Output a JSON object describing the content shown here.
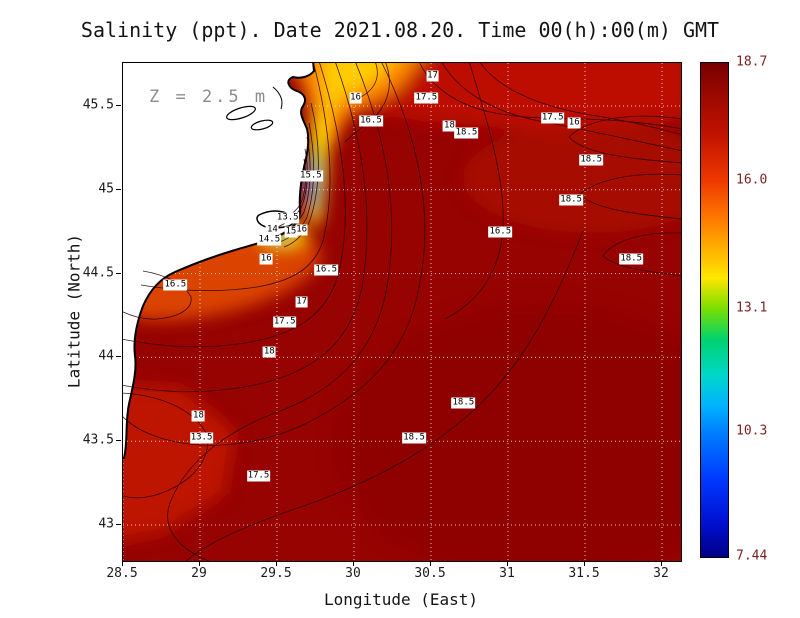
{
  "title": "Salinity (ppt). Date 2021.08.20. Time 00(h):00(m) GMT",
  "annotation": "Z = 2.5 m",
  "axes": {
    "x_label": "Longitude (East)",
    "y_label": "Latitude (North)",
    "x_ticks": [
      28.5,
      29,
      29.5,
      30,
      30.5,
      31,
      31.5,
      32
    ],
    "x_tick_labels": [
      "28.5",
      "29",
      "29.5",
      "30",
      "30.5",
      "31",
      "31.5",
      "32"
    ],
    "y_ticks": [
      43,
      43.5,
      44,
      44.5,
      45,
      45.5
    ],
    "y_tick_labels": [
      "43",
      "43.5",
      "44",
      "44.5",
      "45",
      "45.5"
    ],
    "x_range": [
      28.5,
      32.12
    ],
    "y_range": [
      42.79,
      45.76
    ],
    "grid": "dotted-white"
  },
  "colorbar": {
    "min": 7.44,
    "max": 18.7,
    "tick_values": [
      18.7,
      16.0,
      13.1,
      10.3,
      7.44
    ],
    "tick_labels": [
      "18.7",
      "16.0",
      "13.1",
      "10.3",
      "7.44"
    ],
    "stops": [
      {
        "value": 18.7,
        "color": "#780000"
      },
      {
        "value": 18.0,
        "color": "#9b0800"
      },
      {
        "value": 17.0,
        "color": "#c41400"
      },
      {
        "value": 16.0,
        "color": "#ee3a00"
      },
      {
        "value": 15.2,
        "color": "#ff7500"
      },
      {
        "value": 14.4,
        "color": "#ffb600"
      },
      {
        "value": 13.8,
        "color": "#ffe600"
      },
      {
        "value": 13.1,
        "color": "#7adf00"
      },
      {
        "value": 12.4,
        "color": "#00d26e"
      },
      {
        "value": 11.6,
        "color": "#00d7c8"
      },
      {
        "value": 10.9,
        "color": "#00b4ff"
      },
      {
        "value": 10.3,
        "color": "#0080ff"
      },
      {
        "value": 9.2,
        "color": "#0038ff"
      },
      {
        "value": 8.2,
        "color": "#0010d0"
      },
      {
        "value": 7.44,
        "color": "#000086"
      }
    ]
  },
  "chart_data": {
    "type": "heatmap",
    "variable": "Salinity",
    "units": "ppt",
    "date": "2021.08.20",
    "time": "00(h):00(m) GMT",
    "depth_level": "Z = 2.5 m",
    "xlabel": "Longitude (East)",
    "ylabel": "Latitude (North)",
    "xlim": [
      28.5,
      32.12
    ],
    "ylim": [
      42.79,
      45.76
    ],
    "value_range_shown": [
      7.44,
      18.7
    ],
    "contour_interval": 0.5,
    "legend_position": "right-colorbar",
    "contour_labels": [
      {
        "value": "17",
        "lon": 30.51,
        "lat": 45.68
      },
      {
        "value": "16",
        "lon": 30.01,
        "lat": 45.55
      },
      {
        "value": "17.5",
        "lon": 30.47,
        "lat": 45.55
      },
      {
        "value": "16.5",
        "lon": 30.11,
        "lat": 45.41
      },
      {
        "value": "18",
        "lon": 30.62,
        "lat": 45.38
      },
      {
        "value": "18.5",
        "lon": 30.73,
        "lat": 45.34
      },
      {
        "value": "17.5",
        "lon": 31.29,
        "lat": 45.43
      },
      {
        "value": "16",
        "lon": 31.43,
        "lat": 45.4
      },
      {
        "value": "18.5",
        "lon": 31.54,
        "lat": 45.18
      },
      {
        "value": "15.5",
        "lon": 29.72,
        "lat": 45.08
      },
      {
        "value": "18.5",
        "lon": 31.41,
        "lat": 44.94
      },
      {
        "value": "13.5",
        "lon": 29.57,
        "lat": 44.83
      },
      {
        "value": "14",
        "lon": 29.47,
        "lat": 44.76
      },
      {
        "value": "15",
        "lon": 29.59,
        "lat": 44.75
      },
      {
        "value": "16",
        "lon": 29.66,
        "lat": 44.76
      },
      {
        "value": "14.5",
        "lon": 29.45,
        "lat": 44.7
      },
      {
        "value": "16.5",
        "lon": 30.95,
        "lat": 44.75
      },
      {
        "value": "16",
        "lon": 29.43,
        "lat": 44.59
      },
      {
        "value": "18.5",
        "lon": 31.8,
        "lat": 44.59
      },
      {
        "value": "16.5",
        "lon": 29.82,
        "lat": 44.52
      },
      {
        "value": "16.5",
        "lon": 28.84,
        "lat": 44.43
      },
      {
        "value": "17",
        "lon": 29.66,
        "lat": 44.33
      },
      {
        "value": "17.5",
        "lon": 29.55,
        "lat": 44.21
      },
      {
        "value": "18",
        "lon": 29.45,
        "lat": 44.03
      },
      {
        "value": "18.5",
        "lon": 30.71,
        "lat": 43.73
      },
      {
        "value": "18",
        "lon": 28.99,
        "lat": 43.65
      },
      {
        "value": "13.5",
        "lon": 29.01,
        "lat": 43.52
      },
      {
        "value": "18.5",
        "lon": 30.39,
        "lat": 43.52
      },
      {
        "value": "17.5",
        "lon": 29.38,
        "lat": 43.29
      }
    ]
  }
}
